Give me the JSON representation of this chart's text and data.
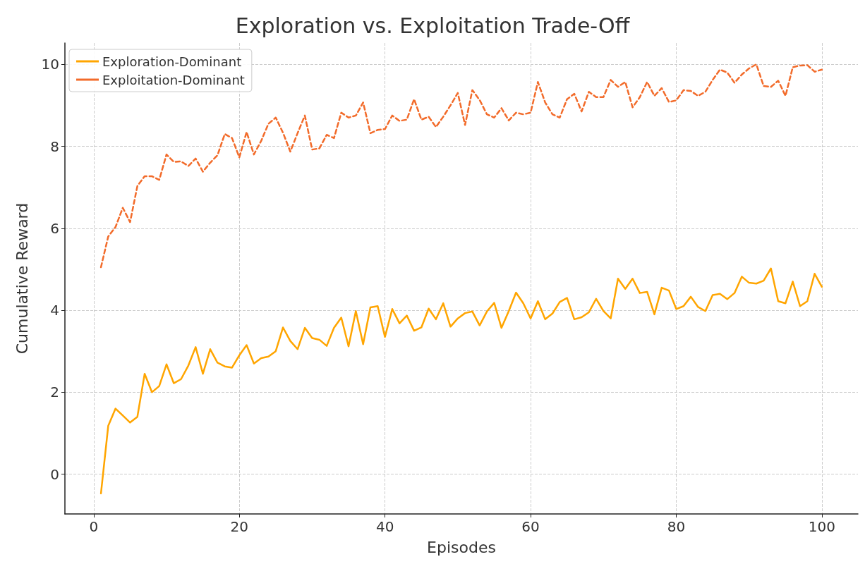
{
  "chart_data": {
    "type": "line",
    "title": "Exploration vs. Exploitation Trade-Off",
    "xlabel": "Episodes",
    "ylabel": "Cumulative Reward",
    "x": [
      1,
      2,
      3,
      4,
      5,
      6,
      7,
      8,
      9,
      10,
      11,
      12,
      13,
      14,
      15,
      16,
      17,
      18,
      19,
      20,
      21,
      22,
      23,
      24,
      25,
      26,
      27,
      28,
      29,
      30,
      31,
      32,
      33,
      34,
      35,
      36,
      37,
      38,
      39,
      40,
      41,
      42,
      43,
      44,
      45,
      46,
      47,
      48,
      49,
      50,
      51,
      52,
      53,
      54,
      55,
      56,
      57,
      58,
      59,
      60,
      61,
      62,
      63,
      64,
      65,
      66,
      67,
      68,
      69,
      70,
      71,
      72,
      73,
      74,
      75,
      76,
      77,
      78,
      79,
      80,
      81,
      82,
      83,
      84,
      85,
      86,
      87,
      88,
      89,
      90,
      91,
      92,
      93,
      94,
      95,
      96,
      97,
      98,
      99,
      100
    ],
    "series": [
      {
        "name": "Exploration-Dominant",
        "color": "#ffa500",
        "line_style": "solid",
        "values": [
          -0.47,
          1.18,
          1.6,
          1.43,
          1.26,
          1.4,
          2.45,
          2.0,
          2.15,
          2.68,
          2.22,
          2.32,
          2.65,
          3.1,
          2.45,
          3.05,
          2.72,
          2.63,
          2.6,
          2.9,
          3.15,
          2.7,
          2.83,
          2.87,
          3.0,
          3.58,
          3.25,
          3.05,
          3.57,
          3.32,
          3.28,
          3.13,
          3.57,
          3.82,
          3.12,
          3.98,
          3.17,
          4.07,
          4.1,
          3.35,
          4.03,
          3.68,
          3.87,
          3.5,
          3.58,
          4.04,
          3.78,
          4.17,
          3.6,
          3.8,
          3.93,
          3.97,
          3.63,
          3.97,
          4.18,
          3.57,
          3.98,
          4.43,
          4.17,
          3.8,
          4.22,
          3.78,
          3.92,
          4.2,
          4.3,
          3.78,
          3.83,
          3.95,
          4.28,
          3.98,
          3.8,
          4.77,
          4.52,
          4.77,
          4.42,
          4.45,
          3.9,
          4.55,
          4.48,
          4.03,
          4.1,
          4.33,
          4.08,
          3.98,
          4.37,
          4.4,
          4.27,
          4.42,
          4.82,
          4.67,
          4.65,
          4.72,
          5.02,
          4.22,
          4.17,
          4.7,
          4.1,
          4.22,
          4.89,
          4.57
        ]
      },
      {
        "name": "Exploitation-Dominant",
        "color": "#f26b2a",
        "line_style": "dashed",
        "values": [
          5.05,
          5.8,
          6.03,
          6.5,
          6.15,
          7.03,
          7.27,
          7.27,
          7.18,
          7.8,
          7.62,
          7.63,
          7.52,
          7.7,
          7.38,
          7.6,
          7.78,
          8.3,
          8.2,
          7.73,
          8.35,
          7.8,
          8.13,
          8.55,
          8.7,
          8.33,
          7.87,
          8.32,
          8.75,
          7.92,
          7.95,
          8.28,
          8.2,
          8.82,
          8.7,
          8.75,
          9.07,
          8.32,
          8.4,
          8.42,
          8.75,
          8.62,
          8.65,
          9.15,
          8.65,
          8.72,
          8.47,
          8.72,
          9.0,
          9.3,
          8.52,
          9.37,
          9.13,
          8.78,
          8.7,
          8.93,
          8.63,
          8.82,
          8.78,
          8.82,
          9.57,
          9.07,
          8.78,
          8.7,
          9.15,
          9.28,
          8.85,
          9.33,
          9.2,
          9.2,
          9.62,
          9.45,
          9.57,
          8.95,
          9.2,
          9.57,
          9.23,
          9.42,
          9.08,
          9.12,
          9.37,
          9.35,
          9.23,
          9.33,
          9.62,
          9.87,
          9.8,
          9.55,
          9.75,
          9.9,
          10.0,
          9.47,
          9.45,
          9.6,
          9.23,
          9.93,
          9.97,
          9.98,
          9.82,
          9.87
        ]
      }
    ],
    "xlim": [
      -3.95,
      104.95
    ],
    "xticks": [
      0,
      20,
      40,
      60,
      80,
      100
    ],
    "ylim": [
      -0.97,
      10.52
    ],
    "yticks": [
      0,
      2,
      4,
      6,
      8,
      10
    ],
    "grid": true,
    "legend": "top left",
    "marker": "none"
  }
}
